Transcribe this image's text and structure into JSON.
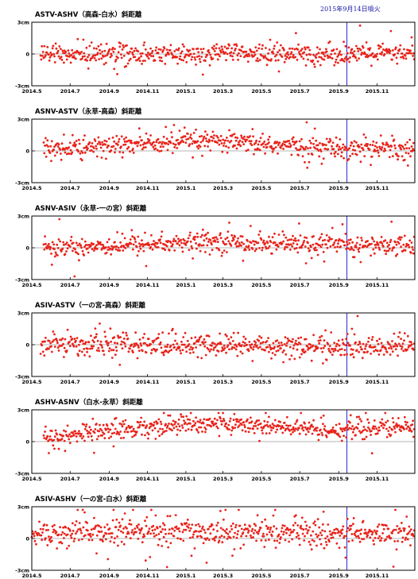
{
  "eruption_label": "2015年9月14日噴火",
  "colors": {
    "points": "#e8231b",
    "eruption_line": "#2d2dd0",
    "zero_line": "#b5b5b5"
  },
  "chart_data": [
    {
      "type": "scatter",
      "title": "ASTV-ASHV（高森-白水）斜距離",
      "ylim": [
        -3,
        3
      ],
      "yticks": [
        "3cm",
        "0",
        "-3cm"
      ],
      "xlim": [
        "2014-05-01",
        "2015-12-31"
      ],
      "xticks": [
        "2014.5",
        "2014.7",
        "2014.9",
        "2014.11",
        "2015.1",
        "2015.3",
        "2015.5",
        "2015.7",
        "2015.9",
        "2015.11"
      ],
      "eruption_date": "2015-09-14",
      "trend": [
        [
          "2014-05-15",
          0.0
        ],
        [
          "2015-12-31",
          0.0
        ]
      ],
      "noise": 0.45
    },
    {
      "type": "scatter",
      "title": "ASNV-ASTV（永草-高森）斜距離",
      "ylim": [
        -3,
        3
      ],
      "yticks": [
        "3cm",
        "0",
        "-3cm"
      ],
      "xlim": [
        "2014-05-01",
        "2015-12-31"
      ],
      "xticks": [
        "2014.5",
        "2014.7",
        "2014.9",
        "2014.11",
        "2015.1",
        "2015.3",
        "2015.5",
        "2015.7",
        "2015.9",
        "2015.11"
      ],
      "eruption_date": "2015-09-14",
      "trend": [
        [
          "2014-05-20",
          0.1
        ],
        [
          "2014-11-01",
          0.7
        ],
        [
          "2015-02-01",
          0.9
        ],
        [
          "2015-06-01",
          0.5
        ],
        [
          "2015-09-01",
          0.3
        ],
        [
          "2015-12-31",
          0.3
        ]
      ],
      "noise": 0.45
    },
    {
      "type": "scatter",
      "title": "ASNV-ASIV（永草-一の宮）斜距離",
      "ylim": [
        -3,
        3
      ],
      "yticks": [
        "3cm",
        "0",
        "-3cm"
      ],
      "xlim": [
        "2014-05-01",
        "2015-12-31"
      ],
      "xticks": [
        "2014.5",
        "2014.7",
        "2014.9",
        "2014.11",
        "2015.1",
        "2015.3",
        "2015.5",
        "2015.7",
        "2015.9",
        "2015.11"
      ],
      "eruption_date": "2015-09-14",
      "trend": [
        [
          "2014-05-20",
          0.0
        ],
        [
          "2014-12-01",
          0.4
        ],
        [
          "2015-03-01",
          0.6
        ],
        [
          "2015-07-01",
          0.3
        ],
        [
          "2015-12-31",
          0.2
        ]
      ],
      "noise": 0.45
    },
    {
      "type": "scatter",
      "title": "ASIV-ASTV（一の宮-高森）斜距離",
      "ylim": [
        -3,
        3
      ],
      "yticks": [
        "3cm",
        "0",
        "-3cm"
      ],
      "xlim": [
        "2014-05-01",
        "2015-12-31"
      ],
      "xticks": [
        "2014.5",
        "2014.7",
        "2014.9",
        "2014.11",
        "2015.1",
        "2015.3",
        "2015.5",
        "2015.7",
        "2015.9",
        "2015.11"
      ],
      "eruption_date": "2015-09-14",
      "trend": [
        [
          "2014-05-15",
          0.0
        ],
        [
          "2015-06-01",
          -0.1
        ],
        [
          "2015-09-01",
          -0.3
        ],
        [
          "2015-12-31",
          -0.1
        ]
      ],
      "noise": 0.5
    },
    {
      "type": "scatter",
      "title": "ASHV-ASNV（白水-永草）斜距離",
      "ylim": [
        -3,
        3
      ],
      "yticks": [
        "3cm",
        "0",
        "-3cm"
      ],
      "xlim": [
        "2014-05-01",
        "2015-12-31"
      ],
      "xticks": [
        "2014.5",
        "2014.7",
        "2014.9",
        "2014.11",
        "2015.1",
        "2015.3",
        "2015.5",
        "2015.7",
        "2015.9",
        "2015.11"
      ],
      "eruption_date": "2015-09-14",
      "trend": [
        [
          "2014-05-20",
          0.2
        ],
        [
          "2014-08-01",
          0.9
        ],
        [
          "2014-12-01",
          1.5
        ],
        [
          "2015-03-01",
          1.8
        ],
        [
          "2015-06-01",
          1.3
        ],
        [
          "2015-09-01",
          1.1
        ],
        [
          "2015-12-31",
          1.4
        ]
      ],
      "noise": 0.45
    },
    {
      "type": "scatter",
      "title": "ASIV-ASHV（一の宮-白水）斜距離",
      "ylim": [
        -3,
        3
      ],
      "yticks": [
        "3cm",
        "0",
        "-3cm"
      ],
      "xlim": [
        "2014-05-01",
        "2015-12-31"
      ],
      "xticks": [
        "2014.5",
        "2014.7",
        "2014.9",
        "2014.11",
        "2015.1",
        "2015.3",
        "2015.5",
        "2015.7",
        "2015.9",
        "2015.11"
      ],
      "eruption_date": "2015-09-14",
      "trend": [
        [
          "2014-05-01",
          0.4
        ],
        [
          "2014-12-01",
          0.7
        ],
        [
          "2015-06-01",
          0.6
        ],
        [
          "2015-09-01",
          0.4
        ],
        [
          "2015-12-31",
          0.6
        ]
      ],
      "noise": 0.6
    }
  ]
}
